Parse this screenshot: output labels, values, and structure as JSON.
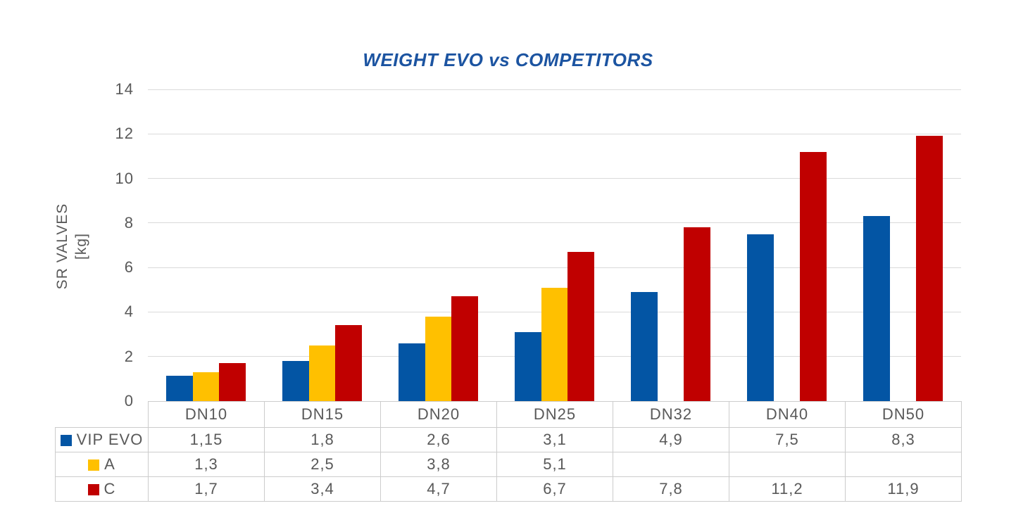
{
  "title": "WEIGHT EVO vs COMPETITORS",
  "y_axis": {
    "line1": "SR VALVES",
    "line2": "[kg]"
  },
  "chart_data": {
    "type": "bar",
    "title": "WEIGHT EVO vs COMPETITORS",
    "ylabel": "SR VALVES [kg]",
    "xlabel": "",
    "categories": [
      "DN10",
      "DN15",
      "DN20",
      "DN25",
      "DN32",
      "DN40",
      "DN50"
    ],
    "series": [
      {
        "name": "VIP EVO",
        "color": "#0355A4",
        "values": [
          1.15,
          1.8,
          2.6,
          3.1,
          4.9,
          7.5,
          8.3
        ],
        "labels": [
          "1,15",
          "1,8",
          "2,6",
          "3,1",
          "4,9",
          "7,5",
          "8,3"
        ]
      },
      {
        "name": "A",
        "color": "#FFC000",
        "values": [
          1.3,
          2.5,
          3.8,
          5.1,
          null,
          null,
          null
        ],
        "labels": [
          "1,3",
          "2,5",
          "3,8",
          "5,1",
          "",
          "",
          ""
        ]
      },
      {
        "name": "C",
        "color": "#C00000",
        "values": [
          1.7,
          3.4,
          4.7,
          6.7,
          7.8,
          11.2,
          11.9
        ],
        "labels": [
          "1,7",
          "3,4",
          "4,7",
          "6,7",
          "7,8",
          "11,2",
          "11,9"
        ]
      }
    ],
    "ylim": [
      0,
      14
    ],
    "yticks": [
      "14",
      "12",
      "10",
      "8",
      "6",
      "4",
      "2",
      "0"
    ],
    "ytick_step": 2,
    "grid": true,
    "legend_position": "table-left",
    "colors": {
      "title": "#1C54A1",
      "gridline": "#DADADA",
      "table_border": "#CCCCCC",
      "text": "#595959"
    }
  }
}
